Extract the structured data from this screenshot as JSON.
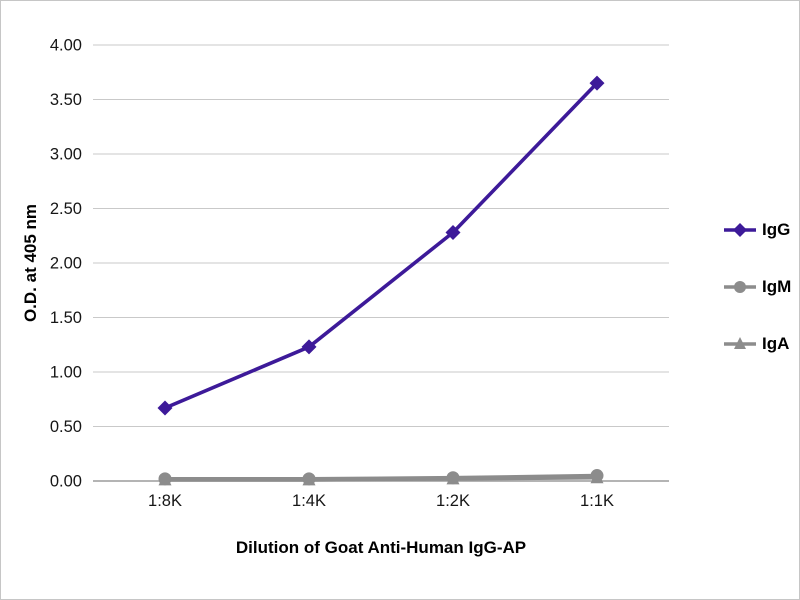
{
  "chart_data": {
    "type": "line",
    "title": "",
    "xlabel": "Dilution of Goat Anti-Human IgG-AP",
    "ylabel": "O.D. at 405 nm",
    "categories": [
      "1:8K",
      "1:4K",
      "1:2K",
      "1:1K"
    ],
    "series": [
      {
        "name": "IgG",
        "color": "#3d1a99",
        "marker": "diamond",
        "values": [
          0.67,
          1.23,
          2.28,
          3.65
        ]
      },
      {
        "name": "IgM",
        "color": "#8c8c8c",
        "marker": "circle",
        "values": [
          0.02,
          0.02,
          0.03,
          0.05
        ]
      },
      {
        "name": "IgA",
        "color": "#8c8c8c",
        "marker": "triangle",
        "values": [
          0.01,
          0.01,
          0.02,
          0.03
        ]
      }
    ],
    "ylim": [
      0,
      4
    ],
    "ytick_step": 0.5,
    "ytick_decimals": 2,
    "grid": true,
    "legend_position": "right",
    "colors": {
      "gridline": "#c9c9c9",
      "axis": "#9c9c9c",
      "text": "#000000"
    }
  }
}
